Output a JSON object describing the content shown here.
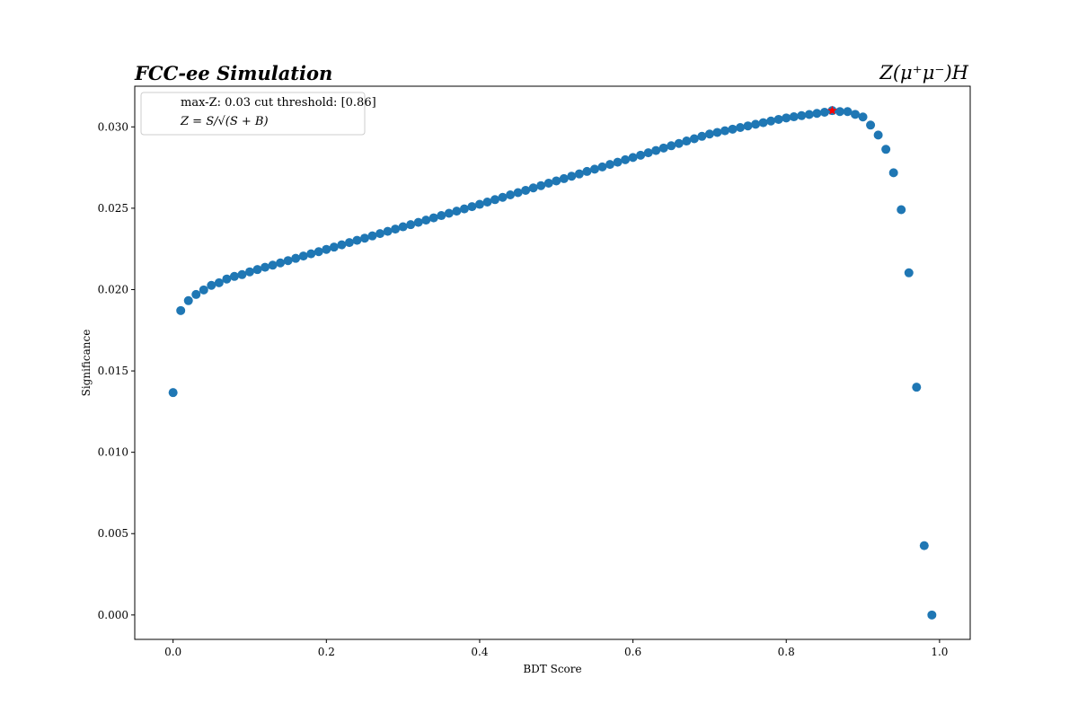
{
  "chart_data": {
    "type": "scatter",
    "title": "FCC-ee Simulation",
    "title_right": "Z(μ⁺μ⁻)H",
    "xlabel": "BDT Score",
    "ylabel": "Significance",
    "xlim": [
      -0.05,
      1.04
    ],
    "ylim": [
      -0.0015,
      0.0325
    ],
    "xticks": [
      "0.0",
      "0.2",
      "0.4",
      "0.6",
      "0.8",
      "1.0"
    ],
    "yticks": [
      "0.000",
      "0.005",
      "0.010",
      "0.015",
      "0.020",
      "0.025",
      "0.030"
    ],
    "legend": {
      "placement": "top-left",
      "entries": [
        "max-Z: 0.03 cut threshold: [0.86]",
        "Z = S/√(S + B)"
      ]
    },
    "series": [
      {
        "name": "Significance",
        "color": "#1f77b4",
        "x_start": 0.0,
        "x_step": 0.01,
        "y": [
          0.01367,
          0.01871,
          0.01932,
          0.0197,
          0.01998,
          0.02026,
          0.02042,
          0.02065,
          0.02081,
          0.02092,
          0.02109,
          0.02123,
          0.02137,
          0.0215,
          0.02164,
          0.02178,
          0.02192,
          0.02206,
          0.0222,
          0.02233,
          0.02247,
          0.02261,
          0.02275,
          0.02289,
          0.02303,
          0.02316,
          0.0233,
          0.02344,
          0.02358,
          0.02372,
          0.02386,
          0.02399,
          0.02413,
          0.02427,
          0.02441,
          0.02455,
          0.02469,
          0.02482,
          0.02496,
          0.0251,
          0.02524,
          0.02538,
          0.02553,
          0.02567,
          0.02582,
          0.02596,
          0.0261,
          0.02625,
          0.02639,
          0.02654,
          0.02668,
          0.02682,
          0.02697,
          0.02711,
          0.02726,
          0.0274,
          0.02754,
          0.02769,
          0.02783,
          0.02798,
          0.02812,
          0.02826,
          0.02841,
          0.02855,
          0.0287,
          0.02884,
          0.02898,
          0.02913,
          0.02927,
          0.02942,
          0.02956,
          0.02966,
          0.02976,
          0.02986,
          0.02996,
          0.03006,
          0.03016,
          0.03026,
          0.03036,
          0.03046,
          0.03055,
          0.03062,
          0.03069,
          0.03076,
          0.03083,
          0.0309,
          0.031,
          0.03094,
          0.03094,
          0.03077,
          0.03061,
          0.03011,
          0.0295,
          0.02862,
          0.02718,
          0.02491,
          0.02103,
          0.014,
          0.00426,
          0.0
        ]
      },
      {
        "name": "max-Z",
        "color": "#ff0000",
        "marker": "star",
        "x": [
          0.86
        ],
        "y": [
          0.031
        ]
      }
    ]
  }
}
